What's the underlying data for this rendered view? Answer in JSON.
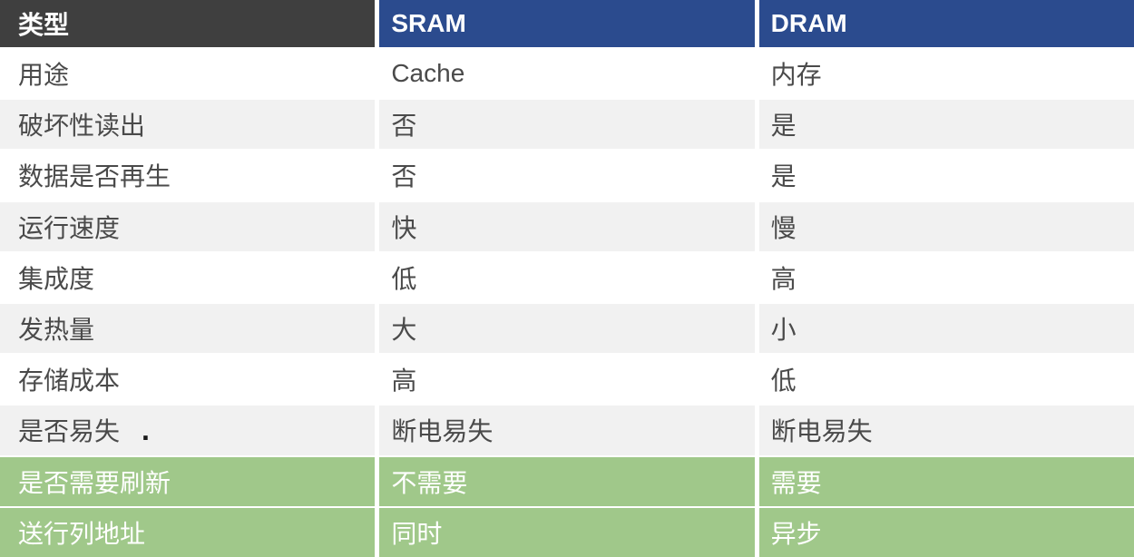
{
  "chart_data": {
    "type": "table",
    "columns": [
      "类型",
      "SRAM",
      "DRAM"
    ],
    "rows": [
      [
        "用途",
        "Cache",
        "内存"
      ],
      [
        "破坏性读出",
        "否",
        "是"
      ],
      [
        "数据是否再生",
        "否",
        "是"
      ],
      [
        "运行速度",
        "快",
        "慢"
      ],
      [
        "集成度",
        "低",
        "高"
      ],
      [
        "发热量",
        "大",
        "小"
      ],
      [
        "存储成本",
        "高",
        "低"
      ],
      [
        "是否易失",
        "断电易失",
        "断电易失"
      ],
      [
        "是否需要刷新",
        "不需要",
        "需要"
      ],
      [
        "送行列地址",
        "同时",
        "异步"
      ]
    ],
    "highlighted_row_indices": [
      8,
      9
    ],
    "layout_hints": {
      "zebra_striping": true,
      "header_row": true,
      "grid_lines": "white gaps between cells"
    }
  },
  "stray_dot": ".",
  "colors": {
    "header_dark": "#3F3F3F",
    "header_blue": "#2B4B8E",
    "row_gray": "#F1F1F1",
    "row_green": "#A0C88A",
    "body_text": "#4A4A4A",
    "header_text": "#FFFFFF"
  }
}
